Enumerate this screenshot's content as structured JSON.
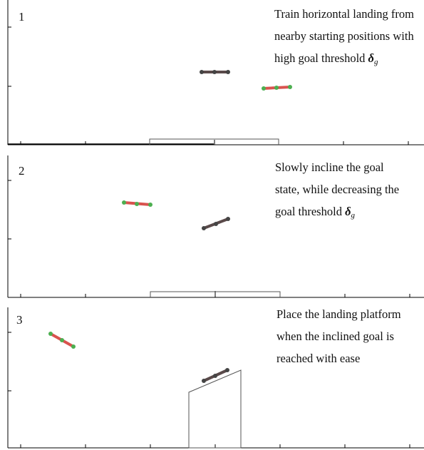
{
  "panels": [
    {
      "number": "1",
      "caption_lines": [
        "Train horizontal landing from",
        "nearby starting positions with",
        "high goal threshold "
      ],
      "symbol": "δ",
      "symbol_sub": "g"
    },
    {
      "number": "2",
      "caption_lines": [
        "Slowly incline the goal",
        "state, while decreasing the",
        "goal threshold "
      ],
      "symbol": "δ",
      "symbol_sub": "g"
    },
    {
      "number": "3",
      "caption_lines": [
        "Place the landing platform",
        "when the inclined goal is",
        "reached with ease"
      ]
    }
  ],
  "colors": {
    "agent_bar": "#d9534f",
    "agent_joint": "#4caf50",
    "goal_bar": "#5a4a4a",
    "goal_joint": "#444444",
    "axis": "#000000",
    "platform": "#555555"
  }
}
